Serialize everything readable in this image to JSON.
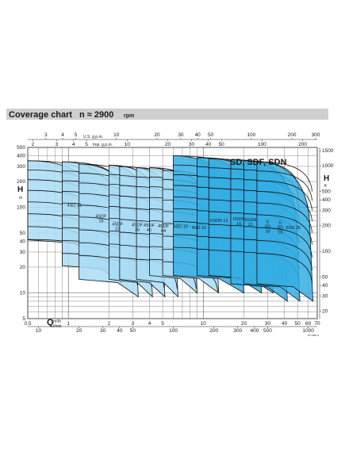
{
  "header": {
    "title": "Coverage chart",
    "speed": "n ≈ 2900",
    "speed_unit": "rpm"
  },
  "chart_data": {
    "type": "area",
    "title": "SD, SDF, SDN",
    "xaxis": {
      "label": "Q",
      "scale": "log",
      "range": [
        0.5,
        70
      ],
      "unit_m3h": "m³/h",
      "unit_lmin": "l/min",
      "ticks_m3h": [
        "0.5",
        "1",
        "2",
        "3",
        "4",
        "5",
        "10",
        "20",
        "30",
        "40",
        "50",
        "60",
        "70"
      ],
      "ticks_lmin": [
        "10",
        "20",
        "30",
        "40",
        "50",
        "100",
        "200",
        "300",
        "400",
        "500",
        "1000"
      ],
      "ticks_usgpm": [
        "3",
        "4",
        "5",
        "10",
        "20",
        "30",
        "40",
        "50",
        "100",
        "200",
        "300"
      ],
      "ticks_impgpm": [
        "2",
        "3",
        "4",
        "5",
        "10",
        "20",
        "30",
        "40",
        "50",
        "100",
        "200"
      ],
      "label_usgpm": "U.S. g.p.m.",
      "label_impgpm": "Imp. g.p.m."
    },
    "yaxis": {
      "label": "H",
      "unit_m": "m",
      "unit_ft": "ft",
      "scale": "log",
      "range": [
        5,
        500
      ],
      "ticks_m": [
        "5",
        "10",
        "20",
        "30",
        "40",
        "50",
        "100",
        "200",
        "300",
        "400",
        "500"
      ],
      "ticks_ft": [
        "20",
        "30",
        "40",
        "50",
        "100",
        "200",
        "300",
        "400",
        "500",
        "1000",
        "1500"
      ]
    },
    "series": [
      {
        "name": "4SD 31",
        "label": "4SD 31",
        "qmin": 0.5,
        "qmax": 1.7,
        "hmax": 350,
        "hmin": 26,
        "family": "4"
      },
      {
        "name": "4SDF 16",
        "label": "4SDF\n16",
        "qmin": 0.9,
        "qmax": 2.5,
        "hmax": 340,
        "hmin": 13,
        "family": "4"
      },
      {
        "name": "4SDF 22",
        "label": "4SDF\n22",
        "qmin": 1.2,
        "qmax": 3.3,
        "hmax": 320,
        "hmin": 9,
        "family": "4"
      },
      {
        "name": "4SDF 36",
        "label": "4SDF\n36",
        "qmin": 2.0,
        "qmax": 4.2,
        "hmax": 310,
        "hmin": 9,
        "family": "4"
      },
      {
        "name": "4SDF 46",
        "label": "4SDF\n46",
        "qmin": 2.4,
        "qmax": 5.2,
        "hmax": 300,
        "hmin": 9,
        "family": "4"
      },
      {
        "name": "4SDF 64",
        "label": "4SDF\n64",
        "qmin": 3.2,
        "qmax": 6.5,
        "hmax": 290,
        "hmin": 9,
        "family": "4"
      },
      {
        "name": "4SD 10",
        "label": "4SD 10",
        "qmin": 4.0,
        "qmax": 9.0,
        "hmax": 290,
        "hmin": 10,
        "family": "4"
      },
      {
        "name": "4SD 15",
        "label": "4SD 15",
        "qmin": 5.0,
        "qmax": 13.0,
        "hmax": 270,
        "hmin": 10,
        "family": "4"
      },
      {
        "name": "6SDN 12",
        "label": "6SDN 12",
        "qmin": 6.0,
        "qmax": 20.0,
        "hmax": 400,
        "hmin": 10,
        "family": "6"
      },
      {
        "name": "6SDN 16",
        "label": "6SDN\n16",
        "qmin": 9.0,
        "qmax": 27.0,
        "hmax": 380,
        "hmin": 10,
        "family": "6"
      },
      {
        "name": "6SDN 21",
        "label": "6SDN\n21",
        "qmin": 11.0,
        "qmax": 33.0,
        "hmax": 370,
        "hmin": 10,
        "family": "6"
      },
      {
        "name": "6 SD 18",
        "label": "6\nSD\n18",
        "qmin": 16.0,
        "qmax": 42.0,
        "hmax": 360,
        "hmin": 8,
        "family": "6"
      },
      {
        "name": "6 SD 19",
        "label": "6\nSD\n19",
        "qmin": 20.0,
        "qmax": 52.0,
        "hmax": 350,
        "hmin": 8,
        "family": "6"
      },
      {
        "name": "6SD 20",
        "label": "6SD 20",
        "qmin": 25.0,
        "qmax": 65.0,
        "hmax": 340,
        "hmin": 8,
        "family": "6"
      }
    ],
    "grid": true,
    "colors": {
      "family4": "#a9dcf4",
      "family6": "#35aee3",
      "curve": "#111111",
      "band": "#bfbfbf"
    }
  },
  "footer": {
    "code": "15 1006 N"
  }
}
